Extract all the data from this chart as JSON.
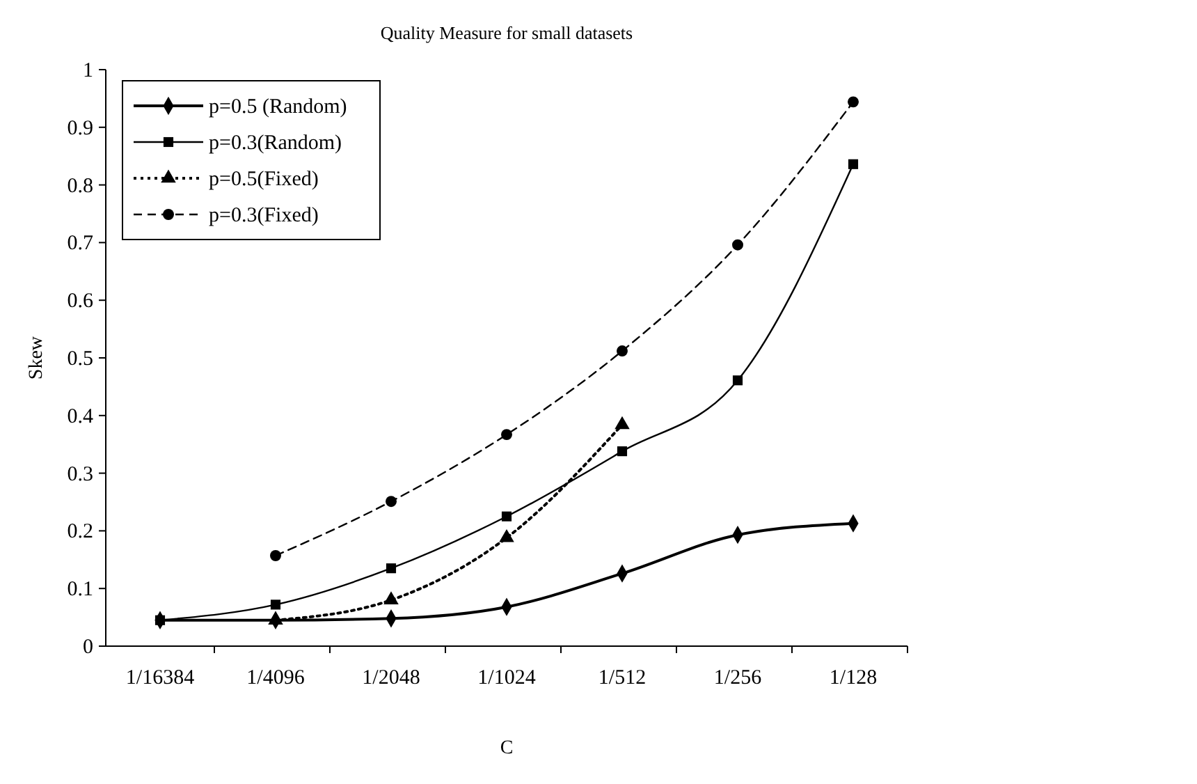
{
  "chart_data": {
    "type": "line",
    "title": "Quality Measure for small datasets",
    "xlabel": "C",
    "ylabel": "Skew",
    "categories": [
      "1/16384",
      "1/4096",
      "1/2048",
      "1/1024",
      "1/512",
      "1/256",
      "1/128"
    ],
    "ylim": [
      0,
      1
    ],
    "yticks": [
      0,
      0.1,
      0.2,
      0.3,
      0.4,
      0.5,
      0.6,
      0.7,
      0.8,
      0.9,
      1
    ],
    "grid": false,
    "legend": "top left",
    "series": [
      {
        "name": "p=0.5 (Random)",
        "color": "#000000",
        "marker": "diamond",
        "line_style": "solid",
        "values": [
          0.045,
          0.045,
          0.048,
          0.068,
          0.126,
          0.193,
          0.213
        ]
      },
      {
        "name": "p=0.3(Random)",
        "color": "#000000",
        "marker": "square",
        "line_style": "solid",
        "values": [
          0.045,
          0.072,
          0.135,
          0.225,
          0.338,
          0.461,
          0.836
        ]
      },
      {
        "name": "p=0.5(Fixed)",
        "color": "#000000",
        "marker": "triangle",
        "line_style": "dotted",
        "values": [
          null,
          0.045,
          0.08,
          0.188,
          0.384,
          null,
          null
        ]
      },
      {
        "name": "p=0.3(Fixed)",
        "color": "#000000",
        "marker": "circle",
        "line_style": "dashed",
        "values": [
          null,
          0.157,
          0.251,
          0.367,
          0.512,
          0.696,
          0.944
        ]
      }
    ]
  }
}
